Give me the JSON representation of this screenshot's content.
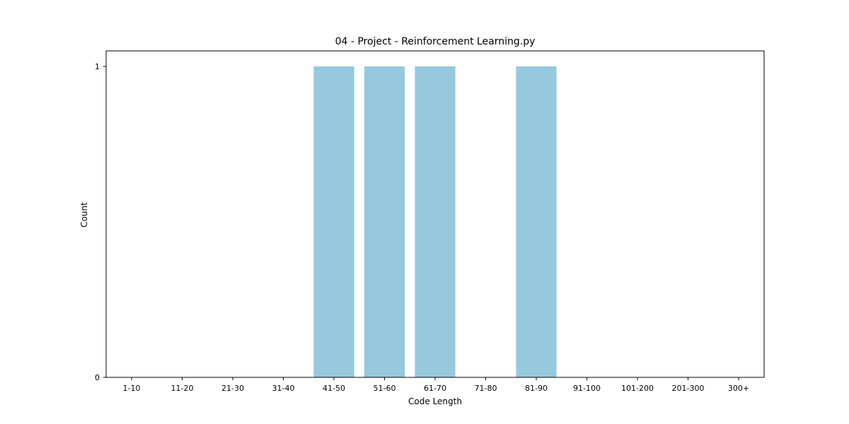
{
  "chart_data": {
    "type": "bar",
    "title": "04 - Project - Reinforcement Learning.py",
    "xlabel": "Code Length",
    "ylabel": "Count",
    "categories": [
      "1-10",
      "11-20",
      "21-30",
      "31-40",
      "41-50",
      "51-60",
      "61-70",
      "71-80",
      "81-90",
      "91-100",
      "101-200",
      "201-300",
      "300+"
    ],
    "values": [
      0,
      0,
      0,
      0,
      1,
      1,
      1,
      0,
      1,
      0,
      0,
      0,
      0
    ],
    "ylim": [
      0,
      1.05
    ],
    "yticks": [
      0,
      1
    ],
    "bar_color": "#96c9dd",
    "grid": false,
    "legend": "none"
  }
}
